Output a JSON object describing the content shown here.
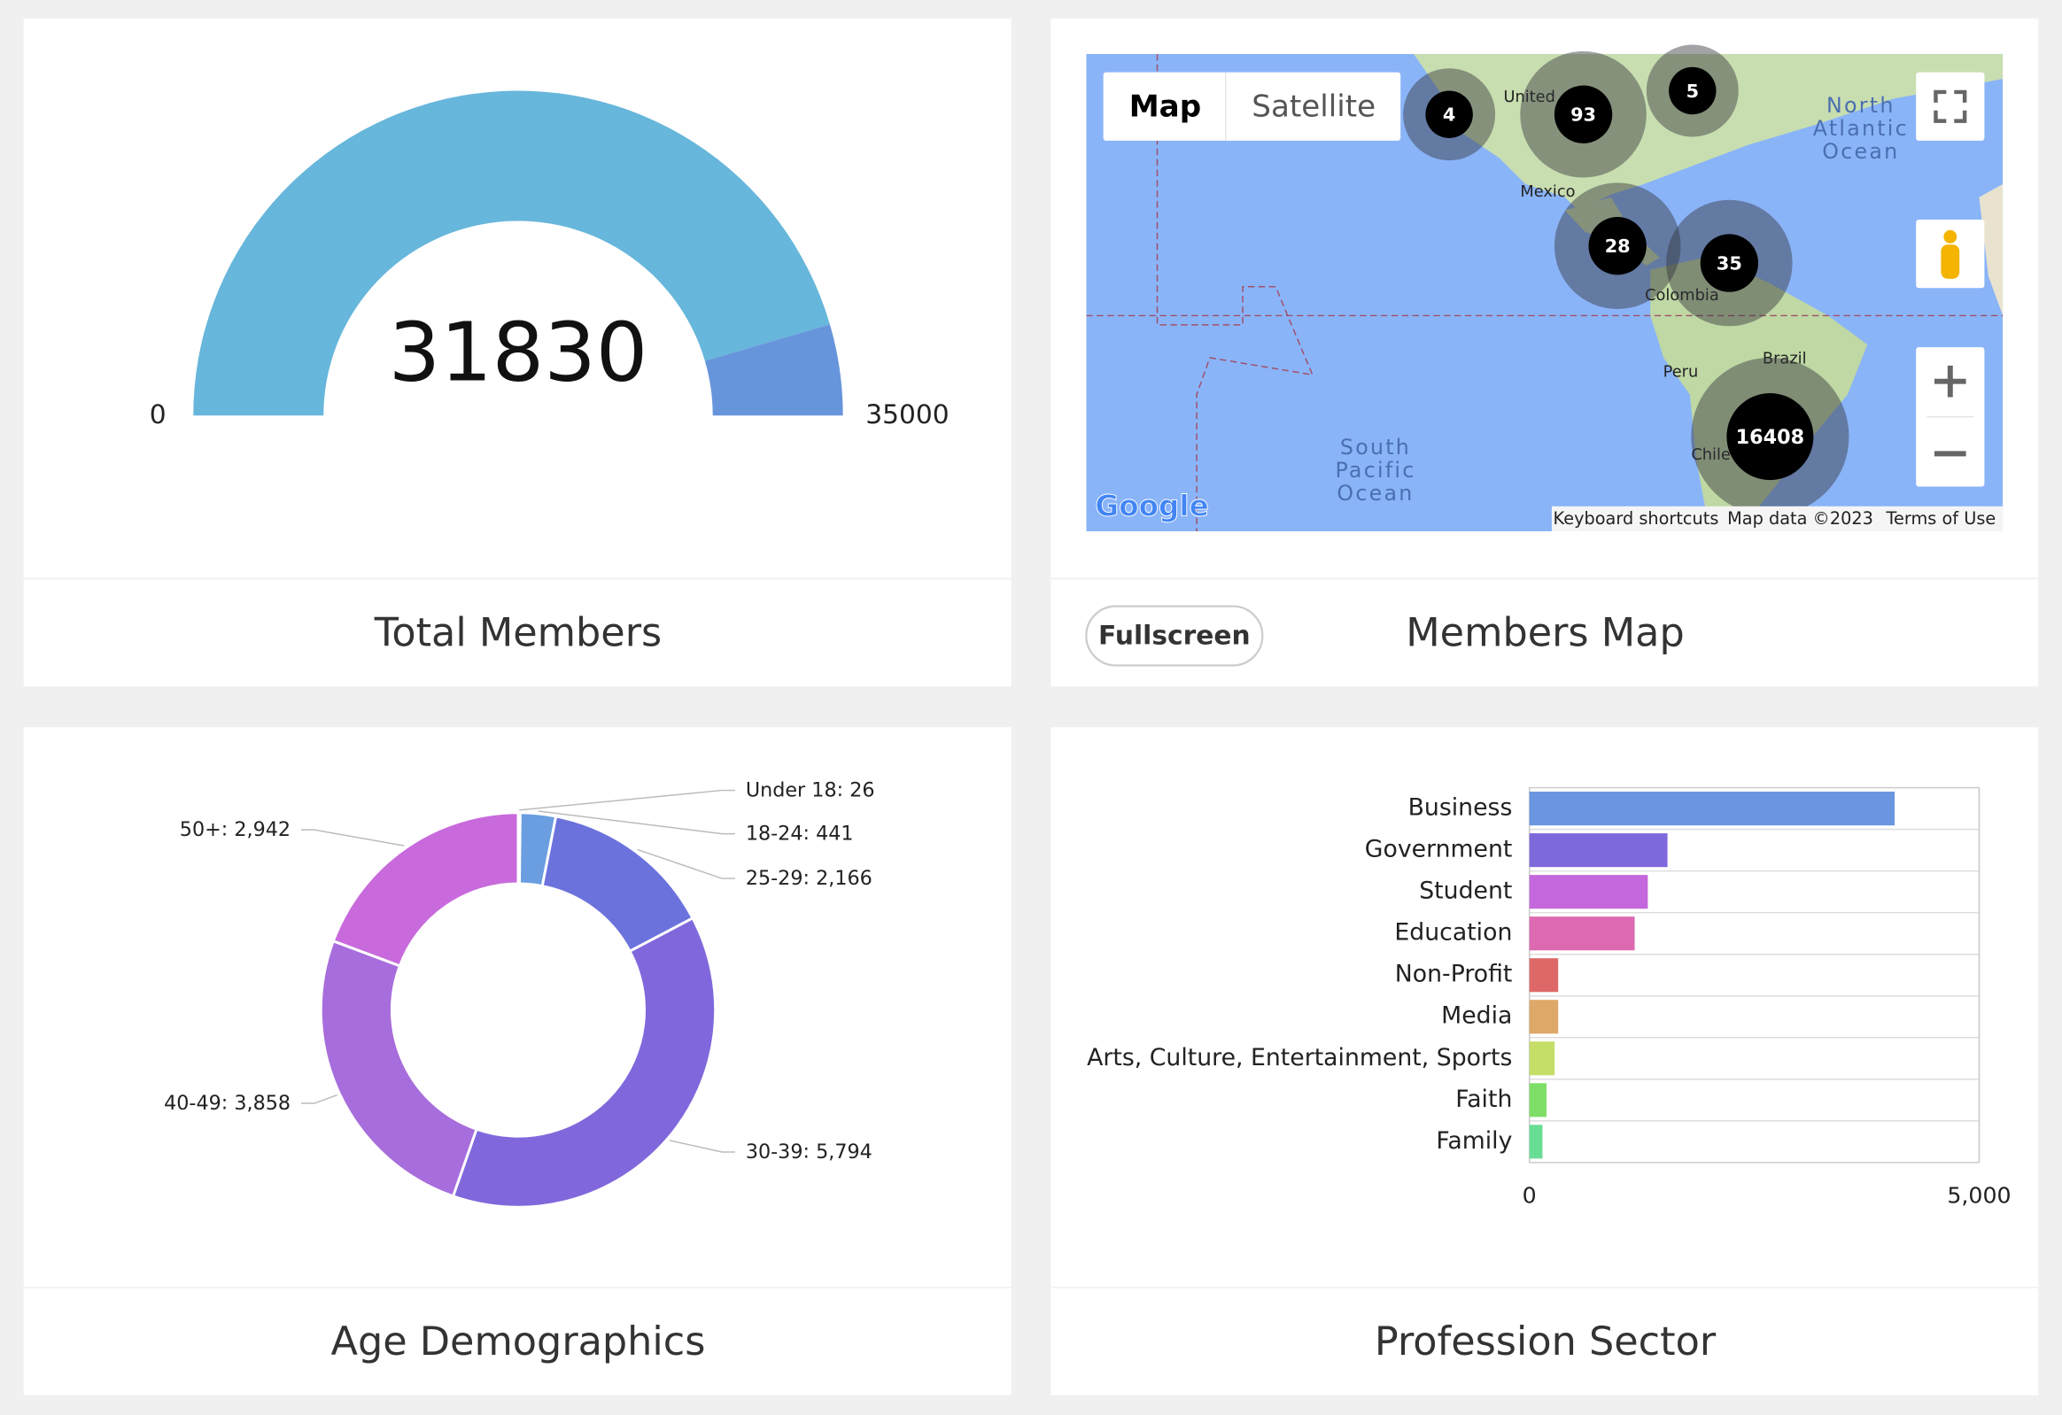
{
  "chart_data": [
    {
      "type": "gauge",
      "title": "Total Members",
      "value": 31830,
      "ylim": [
        0,
        35000
      ],
      "yticks": [
        0,
        35000
      ],
      "colors": [
        "#67b6db",
        "#6795db"
      ]
    },
    {
      "type": "pie",
      "title": "Age Demographics",
      "donut": true,
      "categories": [
        "Under 18",
        "18-24",
        "25-29",
        "30-39",
        "40-49",
        "50+"
      ],
      "values": [
        26,
        441,
        2166,
        5794,
        3858,
        2942
      ],
      "value_labels": [
        "26",
        "441",
        "2,166",
        "5,794",
        "3,858",
        "2,942"
      ],
      "colors": [
        "#5b8fd9",
        "#6a9ee0",
        "#6b72dc",
        "#8068dc",
        "#a86ddc",
        "#c86adc"
      ]
    },
    {
      "type": "bar",
      "orientation": "horizontal",
      "title": "Profession Sector",
      "categories": [
        "Business",
        "Government",
        "Student",
        "Education",
        "Non-Profit",
        "Media",
        "Arts, Culture, Entertainment, Sports",
        "Faith",
        "Family"
      ],
      "values": [
        4060,
        1535,
        1316,
        1170,
        320,
        320,
        280,
        190,
        145
      ],
      "colors": [
        "#6a95e0",
        "#7f68dc",
        "#c567dc",
        "#dd69b0",
        "#de6868",
        "#dea868",
        "#c5de68",
        "#7fde68",
        "#68de95"
      ],
      "xlim": [
        0,
        5000
      ],
      "xticks": [
        0,
        {
          "value": 5000,
          "label": "5,000"
        }
      ],
      "grid": true
    }
  ],
  "map": {
    "title": "Members Map",
    "button": "Fullscreen",
    "map_types": [
      "Map",
      "Satellite"
    ],
    "clusters": [
      4,
      93,
      5,
      28,
      35,
      16408
    ],
    "places": [
      "United",
      "Mexico",
      "Colombia",
      "Peru",
      "Brazil",
      "Chile"
    ],
    "oceans": [
      [
        "North",
        "Atlantic",
        "Ocean"
      ],
      [
        "South",
        "Pacific",
        "Ocean"
      ]
    ],
    "attribution": [
      "Keyboard shortcuts",
      "Map data ©2023",
      "Terms of Use"
    ],
    "logo": "Google"
  }
}
